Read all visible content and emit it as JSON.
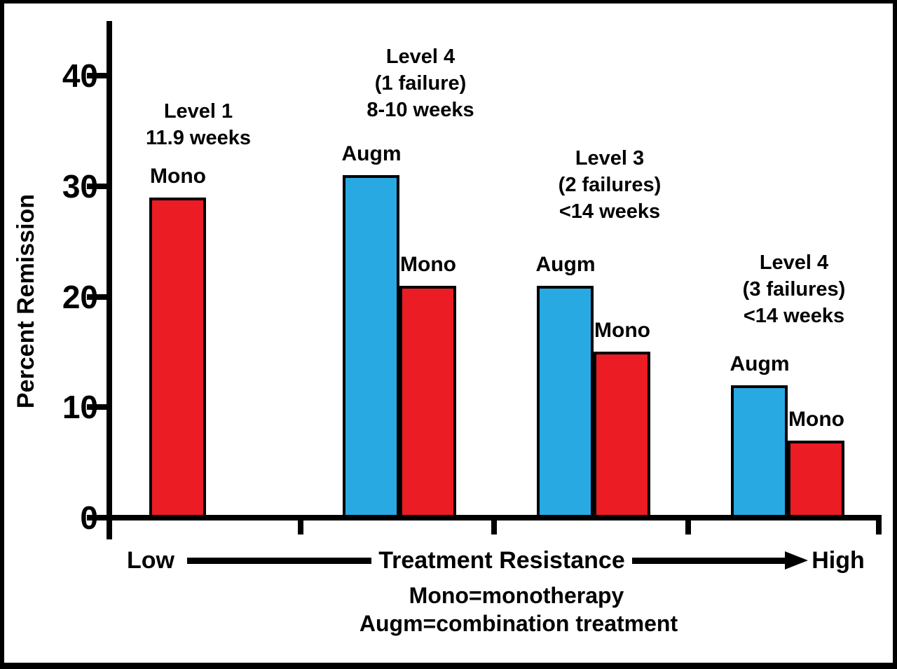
{
  "chart_data": {
    "type": "bar",
    "title": "",
    "ylabel": "Percent Remission",
    "xlabel": "",
    "ylim": [
      0,
      45
    ],
    "yticks": [
      0,
      10,
      20,
      30,
      40
    ],
    "grid": false,
    "bar_colors": {
      "blue": "#29A9E1",
      "red": "#EC1C24"
    },
    "series_legend_meaning": {
      "Mono": "monotherapy",
      "Augm": "combination treatment"
    },
    "groups": [
      {
        "annotation_lines": [
          "Level 1",
          "11.9 weeks"
        ],
        "bars": [
          {
            "label": "Mono",
            "value": 29,
            "color": "red"
          }
        ]
      },
      {
        "annotation_lines": [
          "Level 4",
          "(1 failure)",
          "8-10 weeks"
        ],
        "bars": [
          {
            "label": "Augm",
            "value": 31,
            "color": "blue"
          },
          {
            "label": "Mono",
            "value": 21,
            "color": "red"
          }
        ]
      },
      {
        "annotation_lines": [
          "Level 3",
          "(2 failures)",
          "<14 weeks"
        ],
        "bars": [
          {
            "label": "Augm",
            "value": 21,
            "color": "blue"
          },
          {
            "label": "Mono",
            "value": 15,
            "color": "red"
          }
        ]
      },
      {
        "annotation_lines": [
          "Level 4",
          "(3 failures)",
          "<14 weeks"
        ],
        "bars": [
          {
            "label": "Augm",
            "value": 12,
            "color": "blue"
          },
          {
            "label": "Mono",
            "value": 7,
            "color": "red"
          }
        ]
      }
    ],
    "xaxis_annotation": {
      "low": "Low",
      "center": "Treatment Resistance",
      "high": "High"
    },
    "legend_lines": [
      "Mono=monotherapy",
      "Augm=combination treatment"
    ]
  }
}
